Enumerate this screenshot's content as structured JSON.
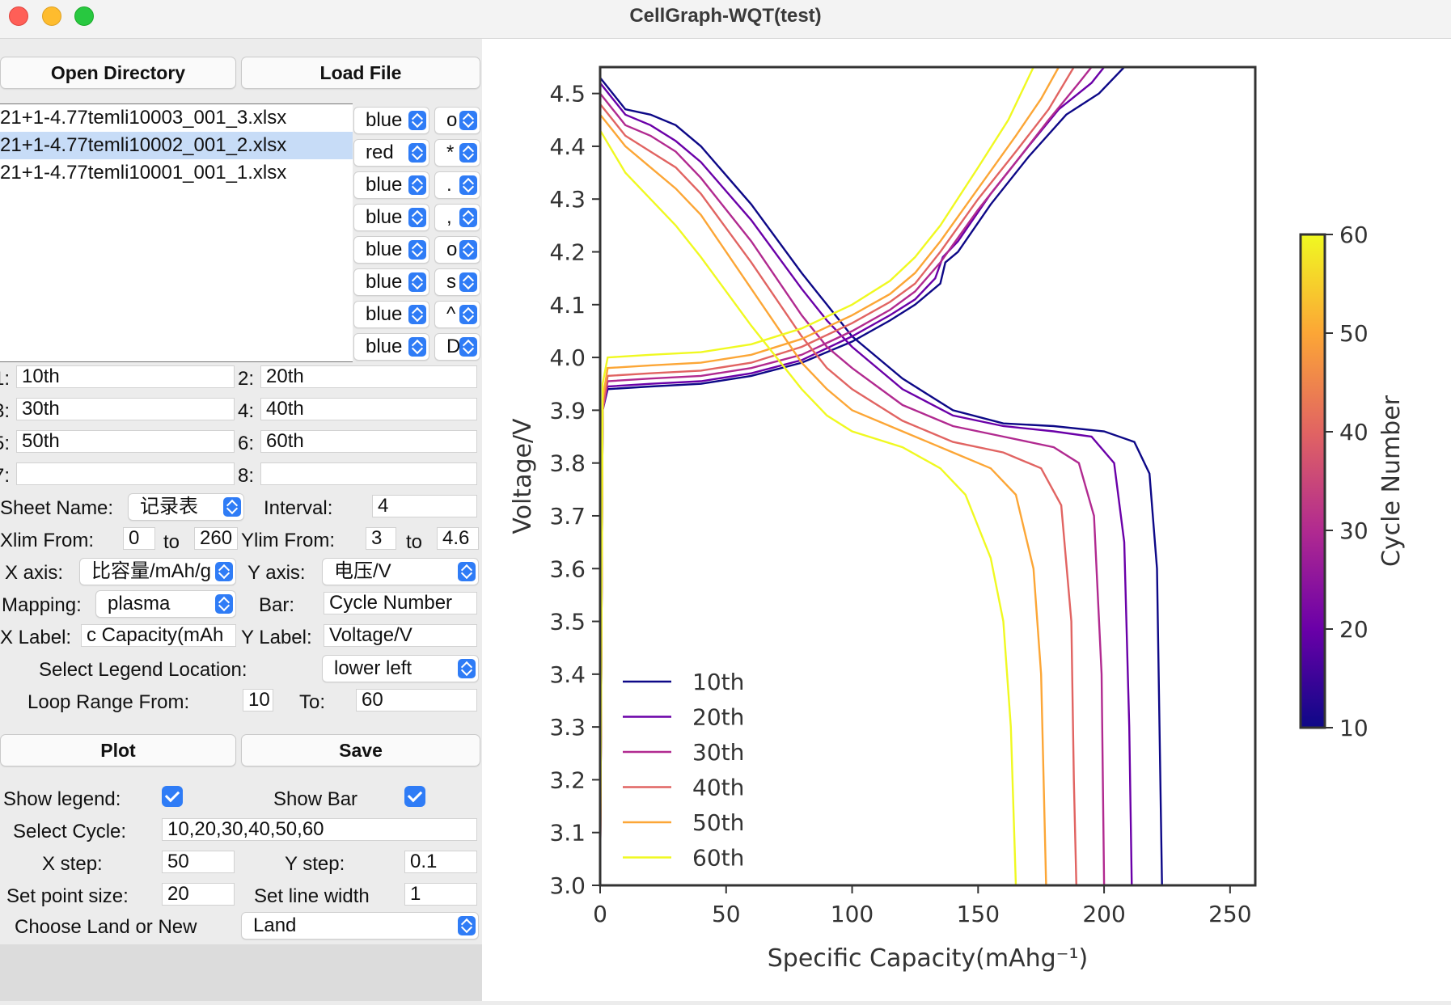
{
  "window": {
    "title": "CellGraph-WQT(test)"
  },
  "buttons": {
    "open_directory": "Open Directory",
    "load_file": "Load File",
    "plot": "Plot",
    "save": "Save"
  },
  "files": [
    {
      "name": "21+1-4.77temli10003_001_3.xlsx",
      "selected": false
    },
    {
      "name": "21+1-4.77temli10002_001_2.xlsx",
      "selected": true
    },
    {
      "name": "21+1-4.77temli10001_001_1.xlsx",
      "selected": false
    }
  ],
  "style_rows": [
    {
      "color": "blue",
      "marker": "o"
    },
    {
      "color": "red",
      "marker": "*"
    },
    {
      "color": "blue",
      "marker": "."
    },
    {
      "color": "blue",
      "marker": ","
    },
    {
      "color": "blue",
      "marker": "o"
    },
    {
      "color": "blue",
      "marker": "s"
    },
    {
      "color": "blue",
      "marker": "^"
    },
    {
      "color": "blue",
      "marker": "D"
    }
  ],
  "legend_fields": [
    {
      "label": "1:",
      "value": "10th"
    },
    {
      "label": "2:",
      "value": "20th"
    },
    {
      "label": "3:",
      "value": "30th"
    },
    {
      "label": "4:",
      "value": "40th"
    },
    {
      "label": "5:",
      "value": "50th"
    },
    {
      "label": "6:",
      "value": "60th"
    },
    {
      "label": "7:",
      "value": ""
    },
    {
      "label": "8:",
      "value": ""
    }
  ],
  "form": {
    "sheet_name_label": "Sheet Name:",
    "sheet_name_value": "记录表",
    "interval_label": "Interval:",
    "interval_value": "4",
    "xlim_from_label": "Xlim From:",
    "xlim_from": "0",
    "to_label": "to",
    "xlim_to": "260",
    "ylim_from_label": "Ylim From:",
    "ylim_from": "3",
    "ylim_to": "4.6",
    "x_axis_label": "X axis:",
    "x_axis_value": "比容量/mAh/g",
    "y_axis_label": "Y axis:",
    "y_axis_value": "电压/V",
    "mapping_label": "Mapping:",
    "mapping_value": "plasma",
    "bar_label": "Bar:",
    "bar_value": "Cycle Number",
    "xlabel_label": "X Label:",
    "xlabel_value": "c Capacity(mAh",
    "ylabel_label": "Y Label:",
    "ylabel_value": "Voltage/V",
    "legend_loc_label": "Select Legend Location:",
    "legend_loc_value": "lower left",
    "loop_from_label": "Loop Range From:",
    "loop_from": "10",
    "loop_to_label": "To:",
    "loop_to": "60",
    "show_legend_label": "Show legend:",
    "show_legend": true,
    "show_bar_label": "Show Bar",
    "show_bar": true,
    "select_cycle_label": "Select Cycle:",
    "select_cycle_value": "10,20,30,40,50,60",
    "x_step_label": "X step:",
    "x_step": "50",
    "y_step_label": "Y step:",
    "y_step": "0.1",
    "point_size_label": "Set point size:",
    "point_size": "20",
    "line_width_label": "Set line width",
    "line_width": "1",
    "land_label": "Choose Land or New",
    "land_value": "Land"
  },
  "chart_data": {
    "type": "line",
    "xlabel": "Specific Capacity(mAhg⁻¹)",
    "ylabel": "Voltage/V",
    "xlim": [
      0,
      260
    ],
    "ylim": [
      3.0,
      4.55
    ],
    "xticks": [
      0,
      50,
      100,
      150,
      200,
      250
    ],
    "yticks": [
      3.0,
      3.1,
      3.2,
      3.3,
      3.4,
      3.5,
      3.6,
      3.7,
      3.8,
      3.9,
      4.0,
      4.1,
      4.2,
      4.3,
      4.4,
      4.5
    ],
    "legend_location": "lower left",
    "colormap": "plasma",
    "colorbar": {
      "label": "Cycle Number",
      "ticks": [
        10,
        20,
        30,
        40,
        50,
        60
      ],
      "range": [
        10,
        60
      ]
    },
    "series": [
      {
        "name": "10th",
        "color": "#0d0887",
        "charge": [
          [
            0,
            3.0
          ],
          [
            1,
            3.9
          ],
          [
            3,
            3.94
          ],
          [
            20,
            3.945
          ],
          [
            40,
            3.95
          ],
          [
            60,
            3.965
          ],
          [
            80,
            3.99
          ],
          [
            100,
            4.03
          ],
          [
            115,
            4.07
          ],
          [
            125,
            4.1
          ],
          [
            135,
            4.14
          ],
          [
            137,
            4.18
          ],
          [
            142,
            4.2
          ],
          [
            155,
            4.29
          ],
          [
            170,
            4.38
          ],
          [
            185,
            4.46
          ],
          [
            198,
            4.5
          ],
          [
            208,
            4.55
          ]
        ],
        "discharge": [
          [
            0,
            4.53
          ],
          [
            5,
            4.5
          ],
          [
            10,
            4.47
          ],
          [
            20,
            4.46
          ],
          [
            30,
            4.44
          ],
          [
            40,
            4.4
          ],
          [
            60,
            4.29
          ],
          [
            80,
            4.16
          ],
          [
            90,
            4.1
          ],
          [
            95,
            4.07
          ],
          [
            100,
            4.04
          ],
          [
            120,
            3.96
          ],
          [
            140,
            3.9
          ],
          [
            160,
            3.875
          ],
          [
            180,
            3.87
          ],
          [
            200,
            3.86
          ],
          [
            212,
            3.84
          ],
          [
            218,
            3.78
          ],
          [
            221,
            3.6
          ],
          [
            222,
            3.3
          ],
          [
            223,
            3.0
          ]
        ]
      },
      {
        "name": "20th",
        "color": "#6a00a8",
        "charge": [
          [
            0,
            3.0
          ],
          [
            1,
            3.9
          ],
          [
            3,
            3.945
          ],
          [
            20,
            3.95
          ],
          [
            40,
            3.955
          ],
          [
            60,
            3.97
          ],
          [
            80,
            3.995
          ],
          [
            100,
            4.04
          ],
          [
            115,
            4.08
          ],
          [
            125,
            4.11
          ],
          [
            133,
            4.15
          ],
          [
            136,
            4.19
          ],
          [
            142,
            4.22
          ],
          [
            155,
            4.31
          ],
          [
            170,
            4.4
          ],
          [
            182,
            4.47
          ],
          [
            195,
            4.52
          ],
          [
            200,
            4.55
          ]
        ],
        "discharge": [
          [
            0,
            4.52
          ],
          [
            5,
            4.49
          ],
          [
            10,
            4.46
          ],
          [
            20,
            4.44
          ],
          [
            30,
            4.41
          ],
          [
            40,
            4.37
          ],
          [
            60,
            4.26
          ],
          [
            80,
            4.13
          ],
          [
            90,
            4.07
          ],
          [
            100,
            4.02
          ],
          [
            120,
            3.94
          ],
          [
            140,
            3.89
          ],
          [
            160,
            3.87
          ],
          [
            180,
            3.86
          ],
          [
            195,
            3.85
          ],
          [
            204,
            3.8
          ],
          [
            208,
            3.65
          ],
          [
            210,
            3.3
          ],
          [
            211,
            3.0
          ]
        ]
      },
      {
        "name": "30th",
        "color": "#b12a90",
        "charge": [
          [
            0,
            3.0
          ],
          [
            1,
            3.9
          ],
          [
            3,
            3.955
          ],
          [
            20,
            3.96
          ],
          [
            40,
            3.965
          ],
          [
            60,
            3.98
          ],
          [
            80,
            4.005
          ],
          [
            100,
            4.05
          ],
          [
            115,
            4.09
          ],
          [
            125,
            4.125
          ],
          [
            135,
            4.18
          ],
          [
            150,
            4.28
          ],
          [
            165,
            4.37
          ],
          [
            178,
            4.45
          ],
          [
            190,
            4.52
          ],
          [
            195,
            4.55
          ]
        ],
        "discharge": [
          [
            0,
            4.5
          ],
          [
            5,
            4.47
          ],
          [
            10,
            4.44
          ],
          [
            20,
            4.42
          ],
          [
            30,
            4.39
          ],
          [
            40,
            4.34
          ],
          [
            60,
            4.22
          ],
          [
            80,
            4.08
          ],
          [
            90,
            4.02
          ],
          [
            100,
            3.98
          ],
          [
            120,
            3.91
          ],
          [
            140,
            3.87
          ],
          [
            160,
            3.85
          ],
          [
            180,
            3.83
          ],
          [
            190,
            3.8
          ],
          [
            196,
            3.7
          ],
          [
            199,
            3.4
          ],
          [
            200,
            3.0
          ]
        ]
      },
      {
        "name": "40th",
        "color": "#e16462",
        "charge": [
          [
            0,
            3.0
          ],
          [
            1,
            3.9
          ],
          [
            3,
            3.965
          ],
          [
            20,
            3.97
          ],
          [
            40,
            3.975
          ],
          [
            60,
            3.99
          ],
          [
            80,
            4.02
          ],
          [
            100,
            4.065
          ],
          [
            115,
            4.105
          ],
          [
            125,
            4.14
          ],
          [
            135,
            4.2
          ],
          [
            150,
            4.3
          ],
          [
            165,
            4.39
          ],
          [
            178,
            4.47
          ],
          [
            188,
            4.55
          ]
        ],
        "discharge": [
          [
            0,
            4.48
          ],
          [
            5,
            4.45
          ],
          [
            10,
            4.42
          ],
          [
            20,
            4.39
          ],
          [
            30,
            4.36
          ],
          [
            40,
            4.31
          ],
          [
            60,
            4.18
          ],
          [
            80,
            4.04
          ],
          [
            90,
            3.98
          ],
          [
            100,
            3.94
          ],
          [
            120,
            3.88
          ],
          [
            140,
            3.84
          ],
          [
            160,
            3.82
          ],
          [
            175,
            3.79
          ],
          [
            183,
            3.72
          ],
          [
            187,
            3.5
          ],
          [
            188,
            3.2
          ],
          [
            189,
            3.0
          ]
        ]
      },
      {
        "name": "50th",
        "color": "#fca636",
        "charge": [
          [
            0,
            3.0
          ],
          [
            1,
            3.92
          ],
          [
            3,
            3.98
          ],
          [
            20,
            3.985
          ],
          [
            40,
            3.99
          ],
          [
            60,
            4.005
          ],
          [
            80,
            4.035
          ],
          [
            100,
            4.08
          ],
          [
            115,
            4.12
          ],
          [
            125,
            4.16
          ],
          [
            135,
            4.22
          ],
          [
            150,
            4.32
          ],
          [
            165,
            4.42
          ],
          [
            175,
            4.49
          ],
          [
            182,
            4.55
          ]
        ],
        "discharge": [
          [
            0,
            4.46
          ],
          [
            5,
            4.43
          ],
          [
            10,
            4.4
          ],
          [
            20,
            4.36
          ],
          [
            30,
            4.32
          ],
          [
            40,
            4.27
          ],
          [
            60,
            4.13
          ],
          [
            80,
            3.99
          ],
          [
            90,
            3.94
          ],
          [
            100,
            3.9
          ],
          [
            120,
            3.86
          ],
          [
            140,
            3.82
          ],
          [
            155,
            3.79
          ],
          [
            165,
            3.74
          ],
          [
            172,
            3.6
          ],
          [
            175,
            3.4
          ],
          [
            177,
            3.0
          ]
        ]
      },
      {
        "name": "60th",
        "color": "#f0f921",
        "charge": [
          [
            0,
            3.0
          ],
          [
            1,
            3.95
          ],
          [
            3,
            4.0
          ],
          [
            20,
            4.005
          ],
          [
            40,
            4.01
          ],
          [
            60,
            4.025
          ],
          [
            80,
            4.055
          ],
          [
            100,
            4.1
          ],
          [
            115,
            4.145
          ],
          [
            125,
            4.19
          ],
          [
            135,
            4.25
          ],
          [
            150,
            4.36
          ],
          [
            162,
            4.45
          ],
          [
            172,
            4.55
          ]
        ],
        "discharge": [
          [
            0,
            4.43
          ],
          [
            5,
            4.39
          ],
          [
            10,
            4.35
          ],
          [
            20,
            4.3
          ],
          [
            30,
            4.25
          ],
          [
            40,
            4.19
          ],
          [
            60,
            4.06
          ],
          [
            80,
            3.94
          ],
          [
            90,
            3.89
          ],
          [
            100,
            3.86
          ],
          [
            120,
            3.83
          ],
          [
            135,
            3.79
          ],
          [
            145,
            3.74
          ],
          [
            155,
            3.62
          ],
          [
            160,
            3.5
          ],
          [
            163,
            3.3
          ],
          [
            165,
            3.0
          ]
        ]
      }
    ]
  }
}
